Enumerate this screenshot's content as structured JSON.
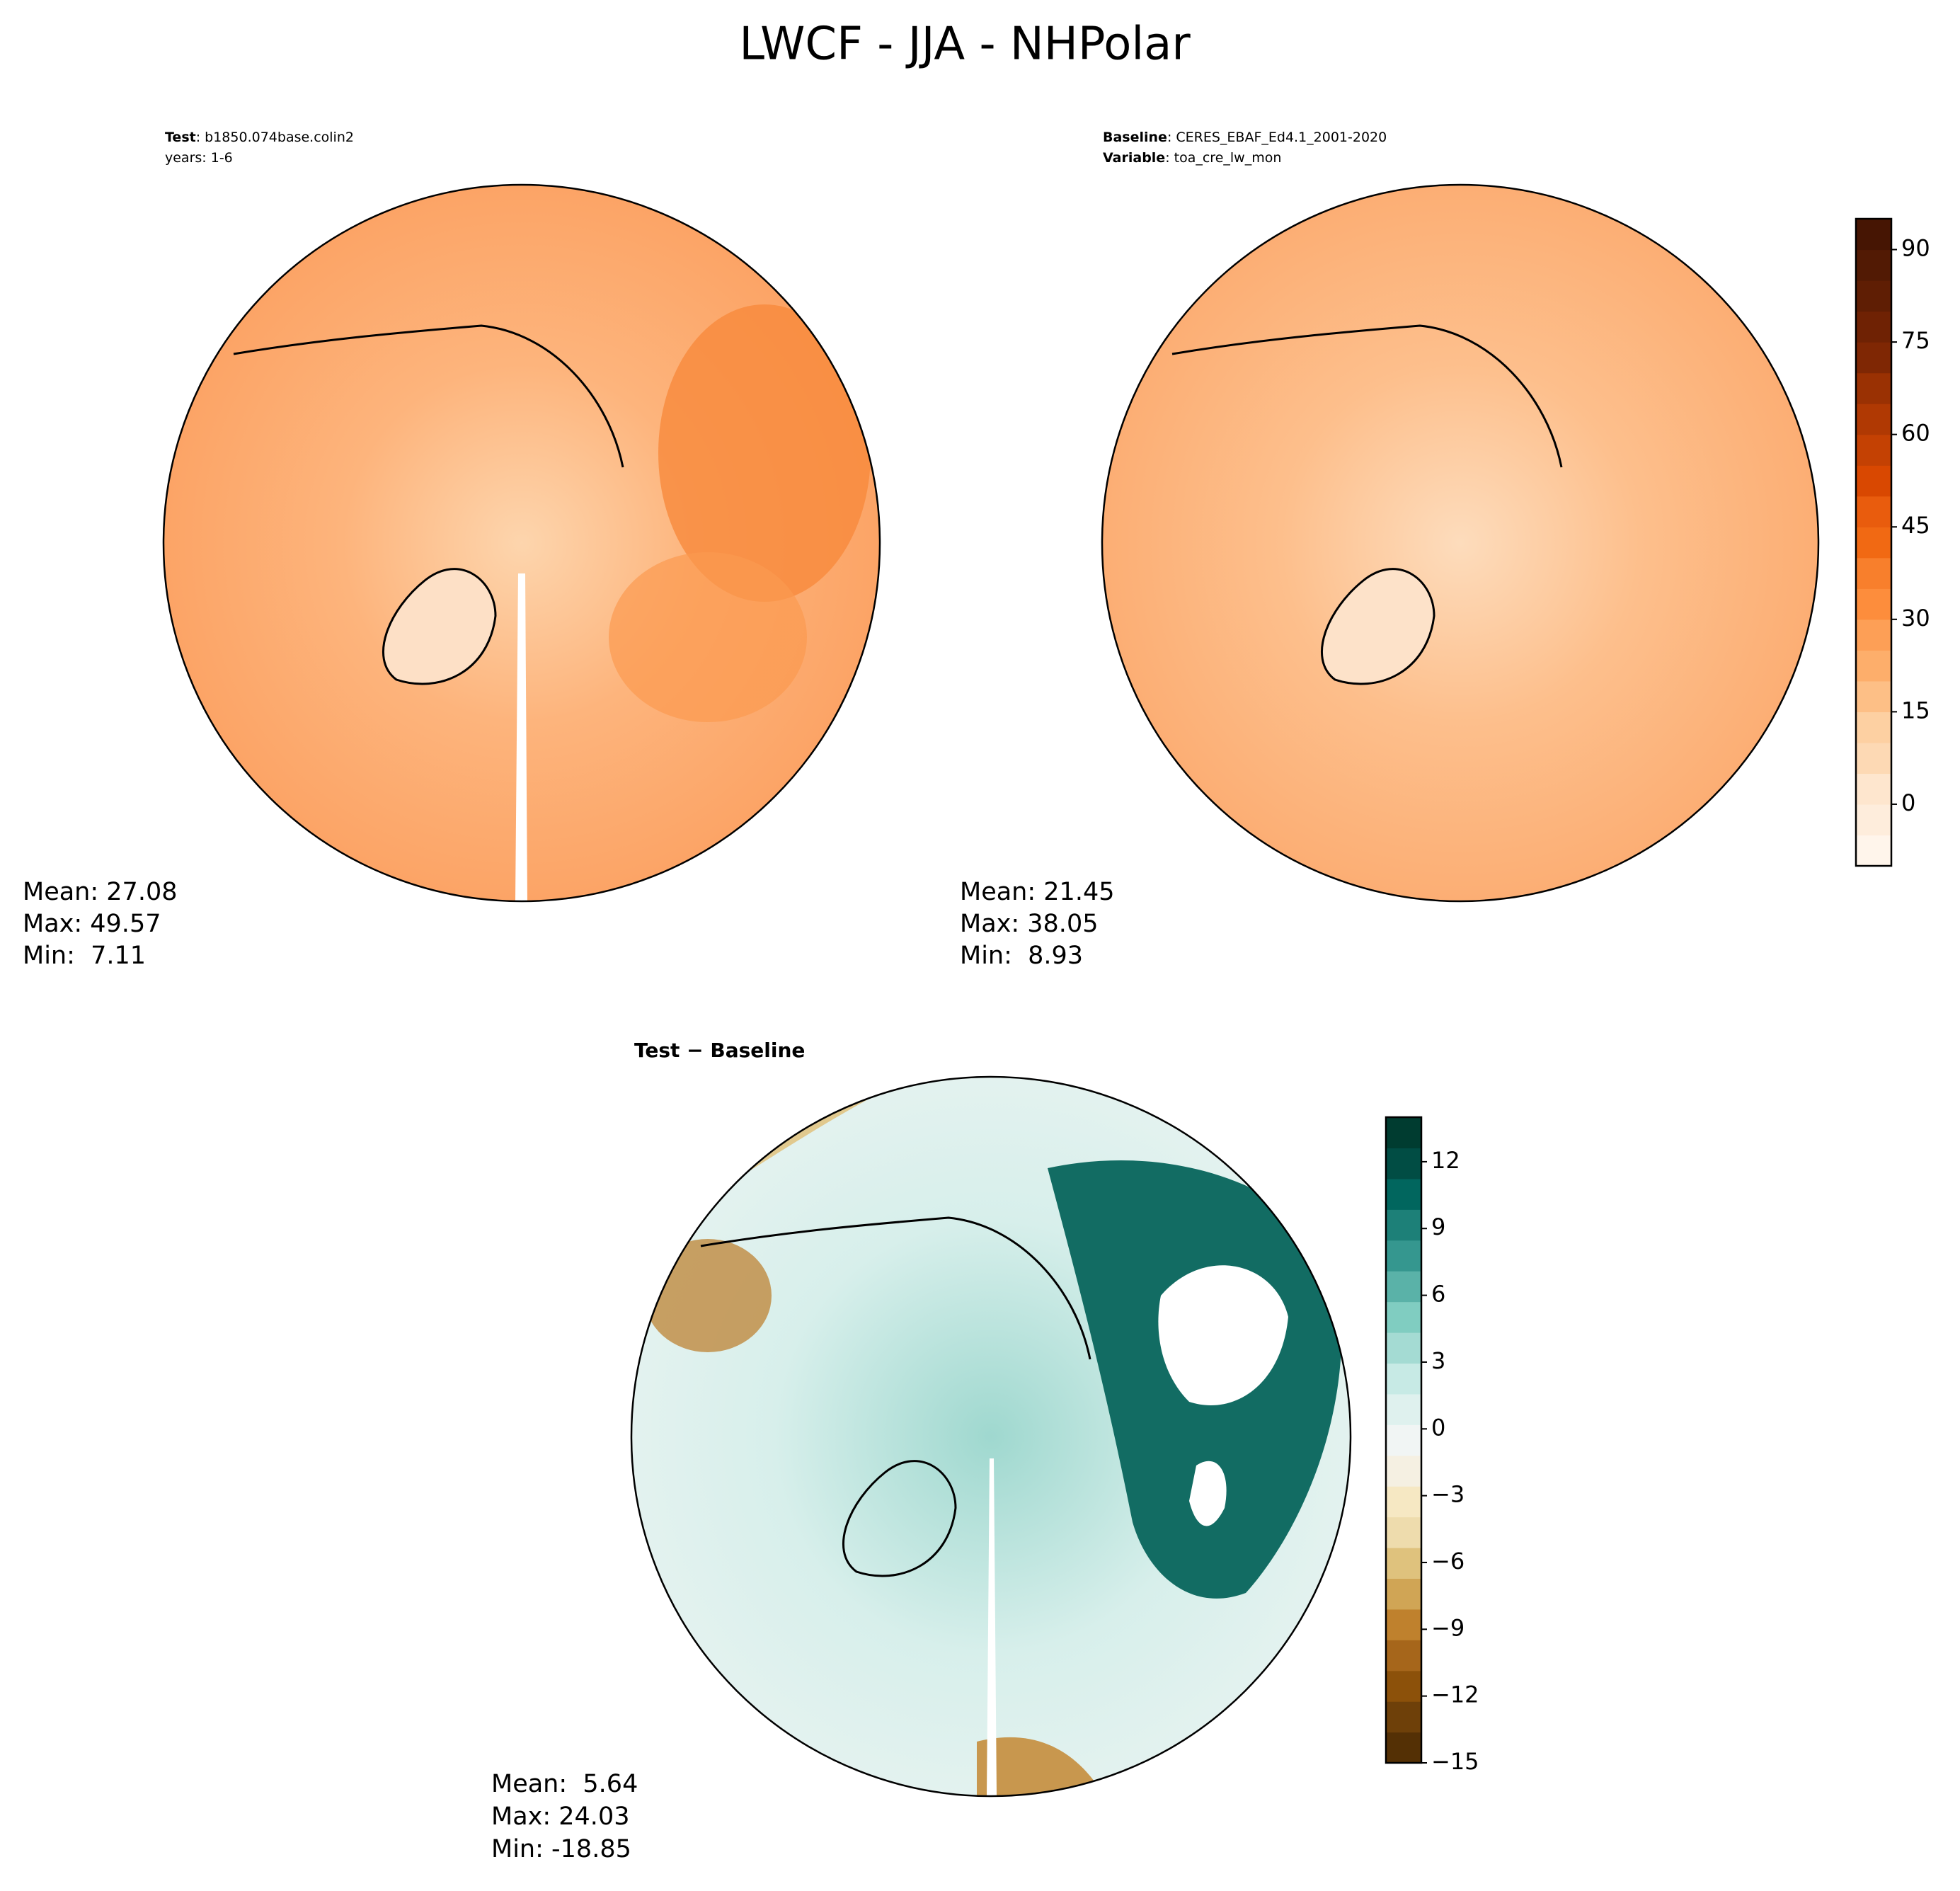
{
  "title": "LWCF - JJA - NHPolar",
  "panels": [
    {
      "header": [
        {
          "label": "Test",
          "text": ": b1850.074base.colin2"
        },
        {
          "text": "years: 1-6"
        }
      ],
      "stats": [
        "Mean: 27.08",
        "Max: 49.57",
        "Min:  7.11"
      ]
    },
    {
      "header": [
        {
          "label": "Baseline",
          "text": ": CERES_EBAF_Ed4.1_2001-2020"
        },
        {
          "label": "Variable",
          "text": ": toa_cre_lw_mon"
        }
      ],
      "stats": [
        "Mean: 21.45",
        "Max: 38.05",
        "Min:  8.93"
      ]
    },
    {
      "header": [
        {
          "label": "Test − Baseline"
        }
      ],
      "stats": [
        "Mean:  5.64",
        "Max: 24.03",
        "Min: -18.85"
      ]
    }
  ],
  "colorbars": [
    {
      "ylim": [
        -10,
        95
      ],
      "yticks": [
        0,
        15,
        30,
        45,
        60,
        75,
        90
      ],
      "colors": [
        "#fff5eb",
        "#feeddc",
        "#fee6ce",
        "#fdd9b4",
        "#fdd0a2",
        "#fdbf86",
        "#fdae6b",
        "#fd9f56",
        "#fd8d3c",
        "#f87f2c",
        "#f16913",
        "#e95c0d",
        "#d94801",
        "#c44103",
        "#b03903",
        "#9a3103",
        "#7f2704",
        "#6f2204",
        "#5f1e04",
        "#521a04",
        "#461503"
      ]
    },
    {
      "ylim": [
        -15,
        14
      ],
      "yticks": [
        {
          "value": -15,
          "label": "−15"
        },
        {
          "value": -12,
          "label": "−12"
        },
        {
          "value": -9,
          "label": "−9"
        },
        {
          "value": -6,
          "label": "−6"
        },
        {
          "value": -3,
          "label": "−3"
        },
        0,
        3,
        6,
        9,
        12
      ],
      "colors": [
        "#543005",
        "#6e4009",
        "#8c510a",
        "#a6661b",
        "#bf812d",
        "#d0a555",
        "#dfc27d",
        "#eedcad",
        "#f6e8c3",
        "#f5f0e2",
        "#f1f5f4",
        "#dff1ee",
        "#c7eae5",
        "#a4dbd3",
        "#80cdc1",
        "#5ab2a8",
        "#35978f",
        "#1d8078",
        "#01665e",
        "#014d44",
        "#003c30"
      ]
    }
  ]
}
